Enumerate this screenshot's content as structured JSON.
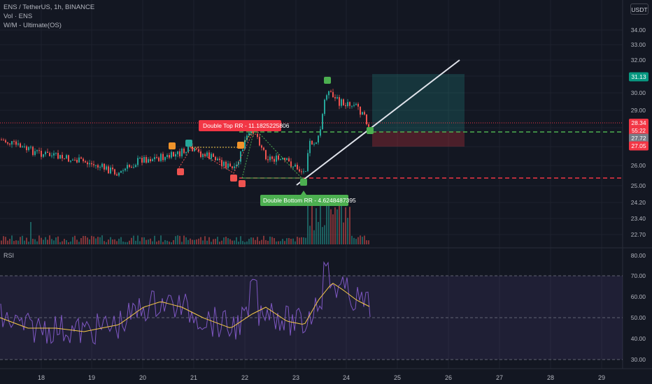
{
  "legend": {
    "symbol_line": "ENS / TetherUS, 1h, BINANCE",
    "vol_line": "Vol · ENS",
    "indicator_line": "W/M - Ultimate(OS)"
  },
  "unit_button": "USDT",
  "price_axis": {
    "labels": [
      "34.00",
      "33.00",
      "32.00",
      "31.00",
      "30.00",
      "29.00",
      "28.00",
      "27.00",
      "26.00",
      "25.00",
      "24.20",
      "23.40",
      "22.70"
    ]
  },
  "price_tags": {
    "target": "31.13",
    "current_price": "28.34",
    "countdown": "55:22",
    "entry": "27.72",
    "stop": "27.05"
  },
  "rsi_axis": {
    "labels": [
      "80.00",
      "70.00",
      "60.00",
      "50.00",
      "40.00",
      "30.00"
    ]
  },
  "rsi_pane_label": "RSI",
  "time_axis": {
    "labels": [
      "18",
      "19",
      "20",
      "21",
      "22",
      "23",
      "24",
      "25",
      "26",
      "27",
      "28",
      "29"
    ]
  },
  "annotations": {
    "double_top": "Double Top RR - 11.1825225806",
    "double_bottom": "Double Bottom RR - 4.6248487395"
  },
  "colors": {
    "background": "#131722",
    "up": "#26a69a",
    "down": "#ef5350",
    "rsi_line": "#7e57c2",
    "rsi_ma": "#f7c948",
    "text": "#b2b5be",
    "green_label": "#4caf50",
    "red_label": "#f23645"
  },
  "chart_data": {
    "type": "candlestick",
    "symbol": "ENS / TetherUS",
    "timeframe": "1h",
    "exchange": "BINANCE",
    "price_ylim": [
      22.4,
      34.6
    ],
    "current_price": 28.34,
    "entry": 27.72,
    "target": 31.13,
    "stop": 27.05,
    "rsi_ylim": [
      25,
      82
    ]
  }
}
